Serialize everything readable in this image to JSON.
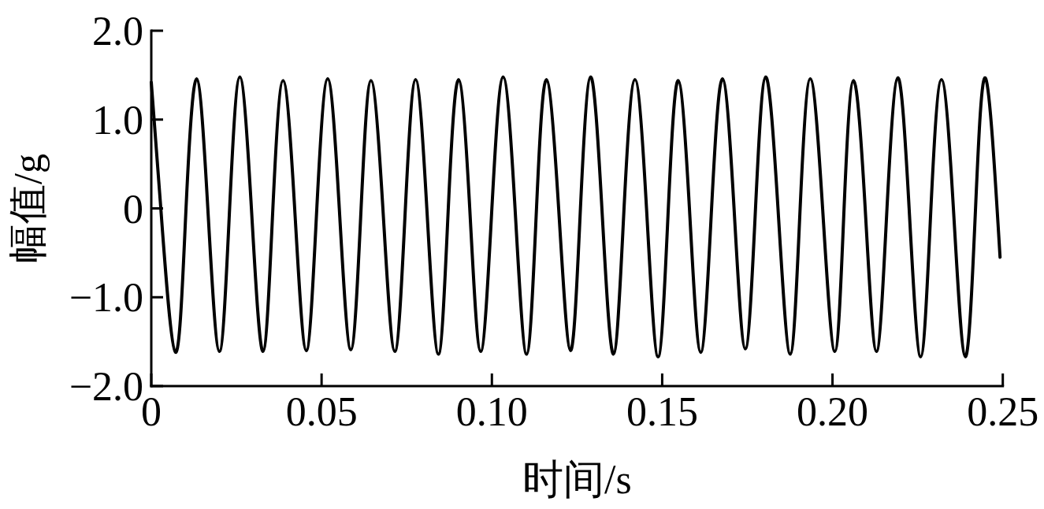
{
  "chart_data": {
    "type": "line",
    "xlabel": "时间/s",
    "ylabel": "幅值/g",
    "color": "#000000",
    "xlim": [
      0,
      0.25
    ],
    "ylim": [
      -2,
      2
    ],
    "xticks": [
      0,
      0.05,
      {
        "value": 0.1,
        "label": "0.10"
      },
      0.15,
      {
        "value": 0.2,
        "label": "0.20"
      },
      0.25
    ],
    "yticks": [
      {
        "value": -2,
        "label": "−2.0"
      },
      {
        "value": -1,
        "label": "−1.0"
      },
      0,
      {
        "value": 1,
        "label": "1.0"
      },
      {
        "value": 2,
        "label": "2.0"
      }
    ],
    "x": [
      0,
      0.0028,
      0.0071,
      0.0102,
      0.0133,
      0.0166,
      0.02,
      0.023,
      0.026,
      0.0294,
      0.0328,
      0.0357,
      0.0387,
      0.0421,
      0.0455,
      0.0486,
      0.0518,
      0.0552,
      0.0586,
      0.0616,
      0.0645,
      0.068,
      0.0715,
      0.0746,
      0.0776,
      0.0809,
      0.0843,
      0.0872,
      0.0902,
      0.0935,
      0.0967,
      0.1,
      0.1033,
      0.1068,
      0.1102,
      0.1131,
      0.116,
      0.1196,
      0.1231,
      0.126,
      0.129,
      0.1323,
      0.1357,
      0.1388,
      0.142,
      0.1454,
      0.1488,
      0.1518,
      0.1547,
      0.158,
      0.1613,
      0.1645,
      0.1677,
      0.1711,
      0.1744,
      0.1774,
      0.1804,
      0.184,
      0.1876,
      0.1905,
      0.1935,
      0.1971,
      0.2007,
      0.2034,
      0.2062,
      0.2096,
      0.2129,
      0.216,
      0.2192,
      0.2225,
      0.2259,
      0.2289,
      0.232,
      0.2355,
      0.239,
      0.242,
      0.245,
      0.2492
    ],
    "values": [
      1.42,
      0,
      -1.62,
      0,
      1.46,
      0,
      -1.61,
      0,
      1.48,
      0,
      -1.61,
      0,
      1.44,
      0,
      -1.6,
      0,
      1.46,
      0,
      -1.59,
      0,
      1.44,
      0,
      -1.61,
      0,
      1.45,
      0,
      -1.64,
      0,
      1.45,
      0,
      -1.61,
      0,
      1.48,
      0,
      -1.64,
      0,
      1.45,
      0,
      -1.6,
      0,
      1.48,
      0,
      -1.64,
      0,
      1.45,
      0,
      -1.67,
      0,
      1.44,
      0,
      -1.62,
      0,
      1.46,
      0,
      -1.58,
      0,
      1.48,
      0,
      -1.64,
      0,
      1.46,
      0,
      -1.61,
      0,
      1.44,
      0,
      -1.61,
      0,
      1.47,
      0,
      -1.67,
      0,
      1.45,
      0,
      -1.67,
      0,
      1.46,
      -0.55
    ]
  }
}
